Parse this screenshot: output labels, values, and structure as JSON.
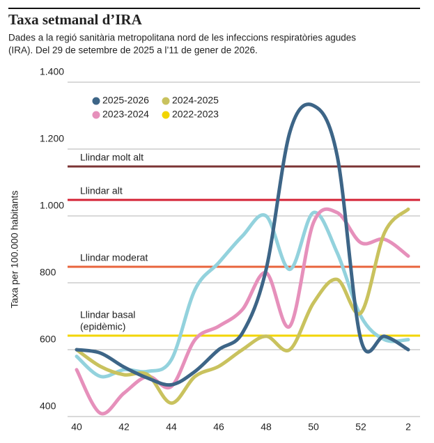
{
  "chart_data": {
    "type": "line",
    "title": "Taxa setmanal d’IRA",
    "subtitle": [
      "Dades a la regió sanitària metropolitana nord de les infeccions respiratòries agudes",
      "(IRA). Del 29 de setembre de 2025 a l’11 de gener de 2026."
    ],
    "y_label": "Taxa per 100.000 habitants",
    "categories": [
      "40",
      null,
      "42",
      null,
      "44",
      null,
      "46",
      null,
      "48",
      null,
      "50",
      null,
      "52",
      null,
      "2"
    ],
    "ylim": [
      400,
      1400
    ],
    "yticks": [
      {
        "value": 400,
        "label": "400"
      },
      {
        "value": 600,
        "label": "600"
      },
      {
        "value": 800,
        "label": "800"
      },
      {
        "value": 1000,
        "label": "1.000"
      },
      {
        "value": 1200,
        "label": "1.200"
      },
      {
        "value": 1400,
        "label": "1.400"
      }
    ],
    "grid": true,
    "series": [
      {
        "name": "2025-2026",
        "color": "#3d6587",
        "values": [
          600,
          590,
          548,
          515,
          495,
          535,
          600,
          650,
          840,
          1250,
          1330,
          1180,
          630,
          640,
          600
        ]
      },
      {
        "name": "2024-2025",
        "color": "#c9c25e",
        "values": [
          600,
          550,
          525,
          525,
          440,
          520,
          550,
          600,
          640,
          600,
          740,
          810,
          710,
          950,
          1020
        ]
      },
      {
        "name": "2023-2024",
        "color": "#e690bb",
        "values": [
          540,
          410,
          470,
          520,
          490,
          630,
          670,
          720,
          830,
          670,
          980,
          1010,
          920,
          930,
          880
        ]
      },
      {
        "name": "2022-2023",
        "color": "#93d2dd",
        "legend_color": "#f2d500",
        "values": [
          580,
          520,
          540,
          535,
          570,
          780,
          860,
          940,
          1000,
          840,
          1010,
          890,
          700,
          630,
          630
        ]
      }
    ],
    "thresholds": [
      {
        "label": [
          "Llindar molt alt"
        ],
        "value": 1148,
        "color": "#7b3434"
      },
      {
        "label": [
          "Llindar alt"
        ],
        "value": 1048,
        "color": "#d42234"
      },
      {
        "label": [
          "Llindar moderat"
        ],
        "value": 848,
        "color": "#e8643c"
      },
      {
        "label": [
          "Llindar basal",
          "(epidèmic)"
        ],
        "value": 642,
        "color": "#f2d500"
      }
    ]
  }
}
